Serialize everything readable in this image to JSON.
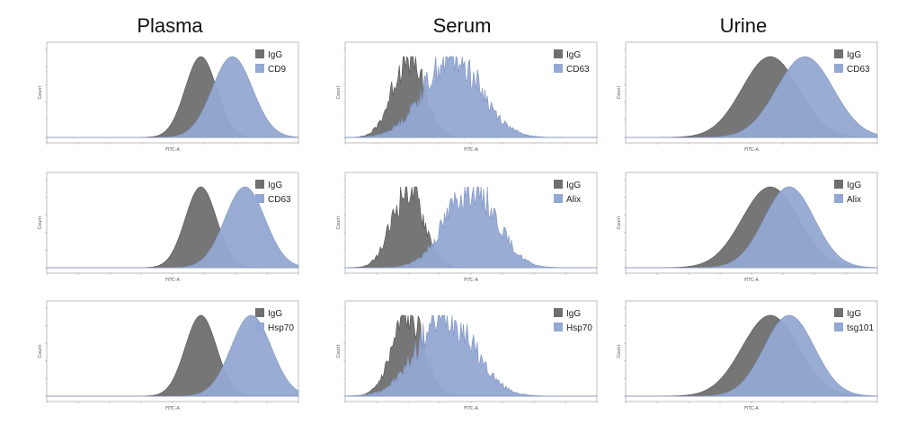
{
  "columns": [
    "Plasma",
    "Serum",
    "Urine"
  ],
  "colors": {
    "igg": "#6f6f6f",
    "marker": "#93a8d2",
    "marker_edge": "#7d93c4",
    "frame": "#bdbdbd"
  },
  "chart_data": [
    {
      "type": "area",
      "column": "Plasma",
      "row": 1,
      "xlabel": "FITC-A",
      "ylabel": "Count",
      "xscale": "log",
      "series": [
        {
          "name": "IgG",
          "peak": 2.45,
          "width": 0.25
        },
        {
          "name": "CD9",
          "peak": 2.95,
          "width": 0.32
        }
      ]
    },
    {
      "type": "area",
      "column": "Serum",
      "row": 1,
      "xlabel": "FITC-A",
      "ylabel": "Count",
      "xscale": "log",
      "series": [
        {
          "name": "IgG",
          "peak": 1.0,
          "width": 0.25
        },
        {
          "name": "CD63",
          "peak": 1.7,
          "width": 0.45
        }
      ]
    },
    {
      "type": "area",
      "column": "Urine",
      "row": 1,
      "xlabel": "FITC-A",
      "ylabel": "Count",
      "xscale": "log",
      "series": [
        {
          "name": "IgG",
          "peak": 2.3,
          "width": 0.45
        },
        {
          "name": "CD63",
          "peak": 2.85,
          "width": 0.45
        }
      ]
    },
    {
      "type": "area",
      "column": "Plasma",
      "row": 2,
      "xlabel": "FITC-A",
      "ylabel": "Count",
      "xscale": "log",
      "series": [
        {
          "name": "IgG",
          "peak": 2.45,
          "width": 0.25
        },
        {
          "name": "CD63",
          "peak": 3.15,
          "width": 0.32
        }
      ]
    },
    {
      "type": "area",
      "column": "Serum",
      "row": 2,
      "xlabel": "FITC-A",
      "ylabel": "Count",
      "xscale": "log",
      "series": [
        {
          "name": "IgG",
          "peak": 1.0,
          "width": 0.25
        },
        {
          "name": "Alix",
          "peak": 2.0,
          "width": 0.4
        }
      ]
    },
    {
      "type": "area",
      "column": "Urine",
      "row": 2,
      "xlabel": "FITC-A",
      "ylabel": "Count",
      "xscale": "log",
      "series": [
        {
          "name": "IgG",
          "peak": 2.3,
          "width": 0.45
        },
        {
          "name": "Alix",
          "peak": 2.6,
          "width": 0.4
        }
      ]
    },
    {
      "type": "area",
      "column": "Plasma",
      "row": 3,
      "xlabel": "FITC-A",
      "ylabel": "Count",
      "xscale": "log",
      "series": [
        {
          "name": "IgG",
          "peak": 2.45,
          "width": 0.25
        },
        {
          "name": "Hsp70",
          "peak": 3.25,
          "width": 0.32
        }
      ]
    },
    {
      "type": "area",
      "column": "Serum",
      "row": 3,
      "xlabel": "FITC-A",
      "ylabel": "Count",
      "xscale": "log",
      "series": [
        {
          "name": "IgG",
          "peak": 1.0,
          "width": 0.25
        },
        {
          "name": "Hsp70",
          "peak": 1.6,
          "width": 0.45
        }
      ]
    },
    {
      "type": "area",
      "column": "Urine",
      "row": 3,
      "xlabel": "FITC-A",
      "ylabel": "Count",
      "xscale": "log",
      "series": [
        {
          "name": "IgG",
          "peak": 2.3,
          "width": 0.45
        },
        {
          "name": "tsg101",
          "peak": 2.6,
          "width": 0.4
        }
      ]
    }
  ]
}
